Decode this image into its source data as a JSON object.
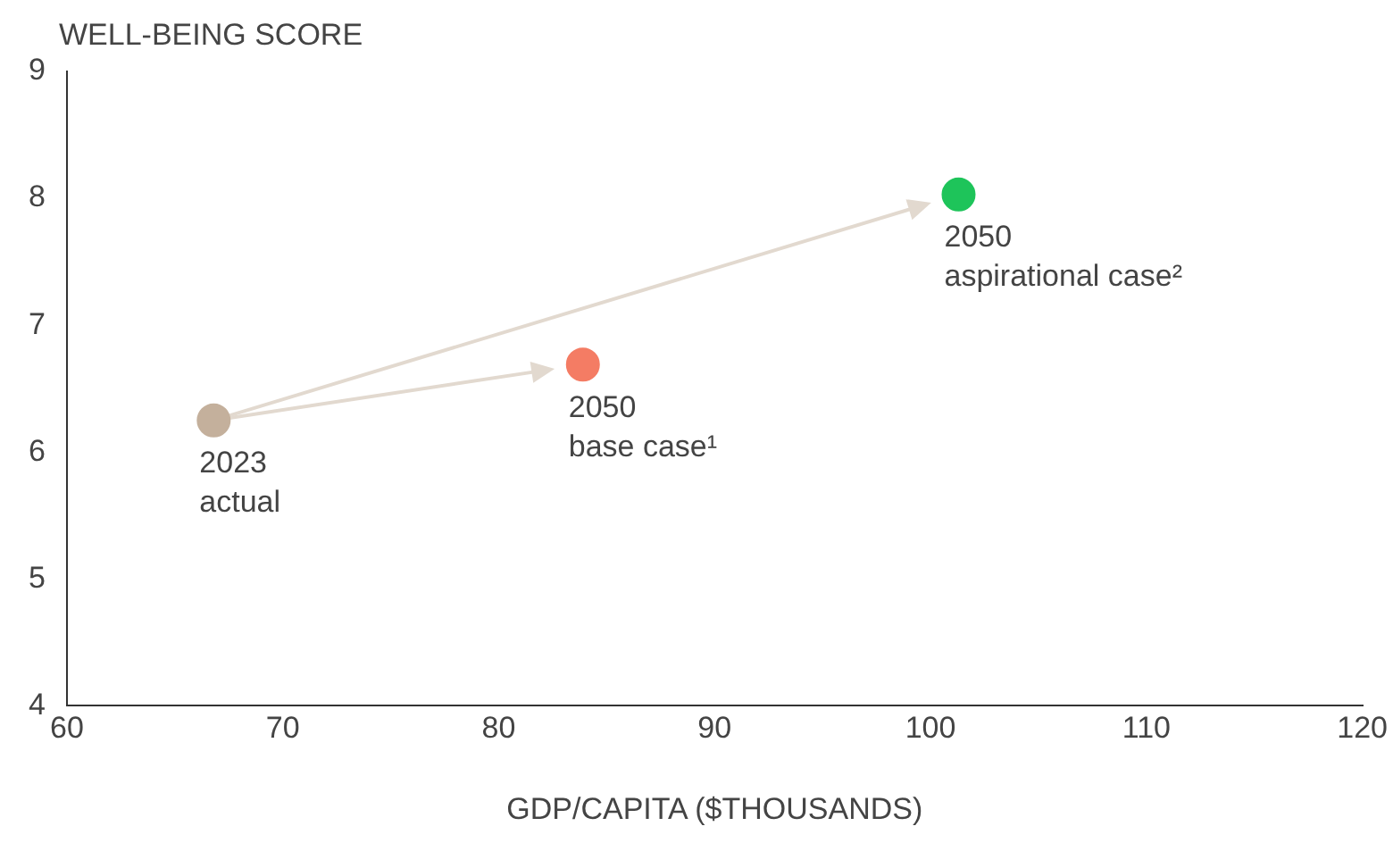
{
  "chart_data": {
    "type": "scatter",
    "ylabel": "WELL-BEING SCORE",
    "xlabel": "GDP/CAPITA ($THOUSANDS)",
    "x": [
      66.8,
      83.9,
      101.3
    ],
    "values": [
      6.25,
      6.69,
      8.03
    ],
    "colors": [
      "#c4b09c",
      "#f47c64",
      "#1ec45a"
    ],
    "xlim": [
      60,
      120
    ],
    "xticks": [
      60,
      70,
      80,
      90,
      100,
      110,
      120
    ],
    "ylim": [
      4,
      9
    ],
    "yticks": [
      4,
      5,
      6,
      7,
      8,
      9
    ],
    "grid": false,
    "legend": false,
    "marker": "circle",
    "annotations": [
      {
        "text": "2023\nactual",
        "x": 66.8,
        "y": 6.25
      },
      {
        "text": "2050\nbase case¹",
        "x": 83.9,
        "y": 6.69
      },
      {
        "text": "2050\naspirational case²",
        "x": 101.3,
        "y": 8.03
      }
    ]
  }
}
